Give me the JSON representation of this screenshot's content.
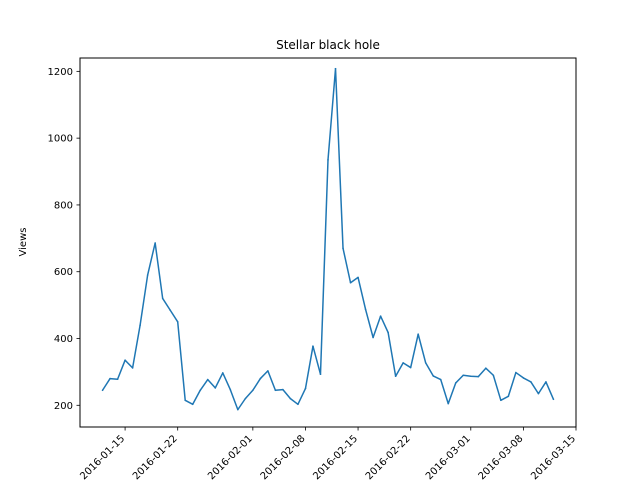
{
  "chart_data": {
    "type": "line",
    "title": "Stellar black hole",
    "xlabel": "",
    "ylabel": "Views",
    "xlim": [
      "2016-01-09",
      "2016-03-15"
    ],
    "ylim": [
      135,
      1240
    ],
    "grid": false,
    "legend": "none",
    "line_color": "#1f77b4",
    "x_ticks": [
      "2016-01-15",
      "2016-01-22",
      "2016-02-01",
      "2016-02-08",
      "2016-02-15",
      "2016-02-22",
      "2016-03-01",
      "2016-03-08",
      "2016-03-15"
    ],
    "x_tick_labels": [
      "2016-01-15",
      "2016-01-22",
      "2016-02-01",
      "2016-02-08",
      "2016-02-15",
      "2016-02-22",
      "2016-03-01",
      "2016-03-08",
      "2016-03-15"
    ],
    "y_ticks": [
      200,
      400,
      600,
      800,
      1000,
      1200
    ],
    "series": [
      {
        "x": [
          "2016-01-12",
          "2016-01-13",
          "2016-01-14",
          "2016-01-15",
          "2016-01-16",
          "2016-01-17",
          "2016-01-18",
          "2016-01-19",
          "2016-01-20",
          "2016-01-21",
          "2016-01-22",
          "2016-01-23",
          "2016-01-24",
          "2016-01-25",
          "2016-01-26",
          "2016-01-27",
          "2016-01-28",
          "2016-01-29",
          "2016-01-30",
          "2016-01-31",
          "2016-02-01",
          "2016-02-02",
          "2016-02-03",
          "2016-02-04",
          "2016-02-05",
          "2016-02-06",
          "2016-02-07",
          "2016-02-08",
          "2016-02-09",
          "2016-02-10",
          "2016-02-11",
          "2016-02-12",
          "2016-02-13",
          "2016-02-14",
          "2016-02-15",
          "2016-02-16",
          "2016-02-17",
          "2016-02-18",
          "2016-02-19",
          "2016-02-20",
          "2016-02-21",
          "2016-02-22",
          "2016-02-23",
          "2016-02-24",
          "2016-02-25",
          "2016-02-26",
          "2016-02-27",
          "2016-02-28",
          "2016-02-29",
          "2016-03-01",
          "2016-03-02",
          "2016-03-03",
          "2016-03-04",
          "2016-03-05",
          "2016-03-06",
          "2016-03-07",
          "2016-03-08",
          "2016-03-09",
          "2016-03-10",
          "2016-03-11",
          "2016-03-12"
        ],
        "values": [
          245,
          280,
          278,
          335,
          312,
          440,
          590,
          686,
          520,
          485,
          450,
          215,
          203,
          245,
          277,
          252,
          297,
          247,
          187,
          220,
          245,
          280,
          303,
          245,
          247,
          220,
          203,
          250,
          377,
          293,
          935,
          1208,
          670,
          567,
          583,
          487,
          403,
          467,
          418,
          287,
          327,
          313,
          413,
          327,
          288,
          277,
          205,
          267,
          290,
          287,
          286,
          311,
          290,
          215,
          227,
          298,
          282,
          270,
          235,
          270,
          218
        ]
      }
    ]
  }
}
